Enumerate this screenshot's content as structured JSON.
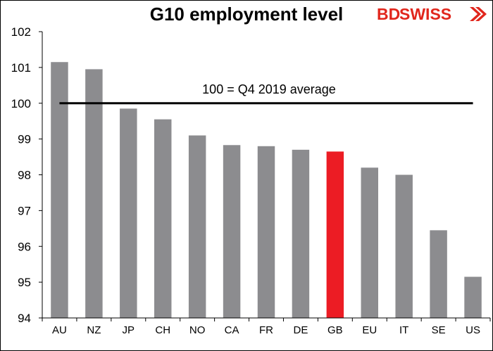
{
  "chart_data": {
    "type": "bar",
    "title": "G10 employment level",
    "xlabel": "",
    "ylabel": "",
    "ylim": [
      94,
      102
    ],
    "yticks": [
      94,
      95,
      96,
      97,
      98,
      99,
      100,
      101,
      102
    ],
    "categories": [
      "AU",
      "NZ",
      "JP",
      "CH",
      "NO",
      "CA",
      "FR",
      "DE",
      "GB",
      "EU",
      "IT",
      "SE",
      "US"
    ],
    "values": [
      101.15,
      100.95,
      99.85,
      99.55,
      99.1,
      98.83,
      98.8,
      98.7,
      98.65,
      98.2,
      98.0,
      96.45,
      95.15
    ],
    "highlight": "GB",
    "bar_color": "#8c8c8f",
    "highlight_color": "#ec1c24",
    "reference_line": {
      "value": 100,
      "label": "100 = Q4 2019 average",
      "color": "#000000"
    },
    "grid": false,
    "legend": "none"
  },
  "logo": {
    "text_bd": "BD",
    "text_swiss": "SWISS",
    "bd_color": "#e1261c",
    "swiss_color": "#e1261c",
    "mark_color": "#e1261c"
  }
}
